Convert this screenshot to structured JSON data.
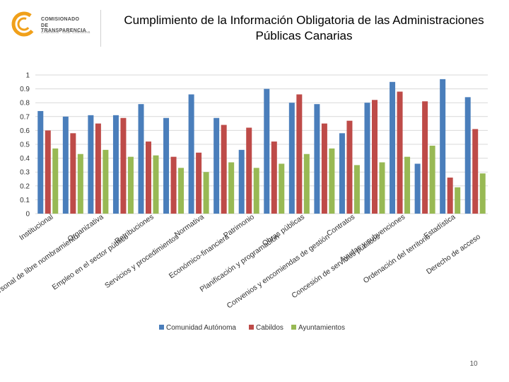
{
  "header": {
    "logo_line1": "COMISIONADO",
    "logo_line2": "DE TRANSPARENCIA",
    "logo_line3": "CANARIAS · GOB. CANARIAS",
    "title": "Cumplimiento de la Información Obligatoria de las Administraciones Públicas Canarias"
  },
  "colors": {
    "comunidad": "#4a7ebb",
    "cabildos": "#be4b48",
    "ayuntamientos": "#98b954",
    "grid": "#d9d9d9",
    "brand_orange": "#f0a01a"
  },
  "chart_data": {
    "type": "bar",
    "title": "",
    "xlabel": "",
    "ylabel": "",
    "ylim": [
      0,
      1
    ],
    "yticks": [
      0,
      0.1,
      0.2,
      0.3,
      0.4,
      0.5,
      0.6,
      0.7,
      0.8,
      0.9,
      1
    ],
    "ytick_labels": [
      "0",
      "0.1",
      "0.2",
      "0.3",
      "0.4",
      "0.5",
      "0.6",
      "0.7",
      "0.8",
      "0.9",
      "1"
    ],
    "grid": true,
    "legend_position": "bottom",
    "categories": [
      "Institucional",
      "Personal de libre nombramiento",
      "Organizativa",
      "Empleo en el sector público",
      "Retribuciones",
      "Servicios y procedimientos",
      "Normativa",
      "Económico-financiera",
      "Patrimonio",
      "Planificación y programación",
      "Obras públicas",
      "Convenios y encomiendas de gestión",
      "Contratos",
      "Concesión de servicios públicos",
      "Ayudas y subvenciones",
      "Ordenación del territorio",
      "Estadística",
      "Derecho de acceso"
    ],
    "series": [
      {
        "name": "Comunidad Autónoma",
        "values": [
          0.74,
          0.7,
          0.71,
          0.71,
          0.79,
          0.69,
          0.86,
          0.69,
          0.46,
          0.9,
          0.8,
          0.79,
          0.58,
          0.8,
          0.95,
          0.36,
          0.97,
          0.84
        ]
      },
      {
        "name": "Cabildos",
        "values": [
          0.6,
          0.58,
          0.65,
          0.69,
          0.52,
          0.41,
          0.44,
          0.64,
          0.62,
          0.52,
          0.86,
          0.65,
          0.67,
          0.82,
          0.88,
          0.81,
          0.26,
          0.61
        ]
      },
      {
        "name": "Ayuntamientos",
        "values": [
          0.47,
          0.43,
          0.46,
          0.41,
          0.42,
          0.33,
          0.3,
          0.37,
          0.33,
          0.36,
          0.43,
          0.47,
          0.35,
          0.37,
          0.41,
          0.49,
          0.19,
          0.29
        ]
      }
    ]
  },
  "footer": {
    "page_number": "10"
  }
}
